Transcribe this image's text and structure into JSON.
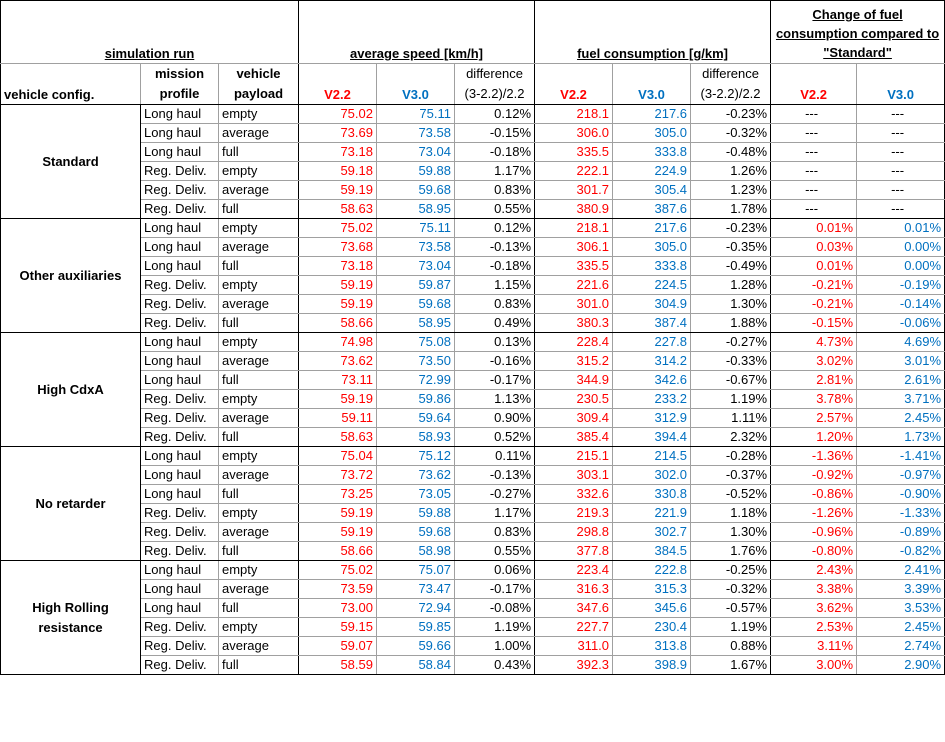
{
  "header": {
    "simulation_run": "simulation run",
    "avg_speed": "average speed [km/h]",
    "fuel_consumption": "fuel consumption [g/km]",
    "change_of_fuel": "Change of fuel consumption compared to \"Standard\"",
    "vehicle_config": "vehicle config.",
    "mission_profile": "mission profile",
    "vehicle_payload": "vehicle payload",
    "v22": "V2.2",
    "v30": "V3.0",
    "difference": "difference (3-2.2)/2.2"
  },
  "groups": [
    {
      "config": "Standard",
      "rows": [
        {
          "mission": "Long haul",
          "payload": "empty",
          "spd22": "75.02",
          "spd30": "75.11",
          "spdd": "0.12%",
          "fc22": "218.1",
          "fc30": "217.6",
          "fcd": "-0.23%",
          "ch22": "---",
          "ch30": "---"
        },
        {
          "mission": "Long haul",
          "payload": "average",
          "spd22": "73.69",
          "spd30": "73.58",
          "spdd": "-0.15%",
          "fc22": "306.0",
          "fc30": "305.0",
          "fcd": "-0.32%",
          "ch22": "---",
          "ch30": "---"
        },
        {
          "mission": "Long haul",
          "payload": "full",
          "spd22": "73.18",
          "spd30": "73.04",
          "spdd": "-0.18%",
          "fc22": "335.5",
          "fc30": "333.8",
          "fcd": "-0.48%",
          "ch22": "---",
          "ch30": "---"
        },
        {
          "mission": "Reg. Deliv.",
          "payload": "empty",
          "spd22": "59.18",
          "spd30": "59.88",
          "spdd": "1.17%",
          "fc22": "222.1",
          "fc30": "224.9",
          "fcd": "1.26%",
          "ch22": "---",
          "ch30": "---"
        },
        {
          "mission": "Reg. Deliv.",
          "payload": "average",
          "spd22": "59.19",
          "spd30": "59.68",
          "spdd": "0.83%",
          "fc22": "301.7",
          "fc30": "305.4",
          "fcd": "1.23%",
          "ch22": "---",
          "ch30": "---"
        },
        {
          "mission": "Reg. Deliv.",
          "payload": "full",
          "spd22": "58.63",
          "spd30": "58.95",
          "spdd": "0.55%",
          "fc22": "380.9",
          "fc30": "387.6",
          "fcd": "1.78%",
          "ch22": "---",
          "ch30": "---"
        }
      ]
    },
    {
      "config": "Other auxiliaries",
      "rows": [
        {
          "mission": "Long haul",
          "payload": "empty",
          "spd22": "75.02",
          "spd30": "75.11",
          "spdd": "0.12%",
          "fc22": "218.1",
          "fc30": "217.6",
          "fcd": "-0.23%",
          "ch22": "0.01%",
          "ch30": "0.01%"
        },
        {
          "mission": "Long haul",
          "payload": "average",
          "spd22": "73.68",
          "spd30": "73.58",
          "spdd": "-0.13%",
          "fc22": "306.1",
          "fc30": "305.0",
          "fcd": "-0.35%",
          "ch22": "0.03%",
          "ch30": "0.00%"
        },
        {
          "mission": "Long haul",
          "payload": "full",
          "spd22": "73.18",
          "spd30": "73.04",
          "spdd": "-0.18%",
          "fc22": "335.5",
          "fc30": "333.8",
          "fcd": "-0.49%",
          "ch22": "0.01%",
          "ch30": "0.00%"
        },
        {
          "mission": "Reg. Deliv.",
          "payload": "empty",
          "spd22": "59.19",
          "spd30": "59.87",
          "spdd": "1.15%",
          "fc22": "221.6",
          "fc30": "224.5",
          "fcd": "1.28%",
          "ch22": "-0.21%",
          "ch30": "-0.19%"
        },
        {
          "mission": "Reg. Deliv.",
          "payload": "average",
          "spd22": "59.19",
          "spd30": "59.68",
          "spdd": "0.83%",
          "fc22": "301.0",
          "fc30": "304.9",
          "fcd": "1.30%",
          "ch22": "-0.21%",
          "ch30": "-0.14%"
        },
        {
          "mission": "Reg. Deliv.",
          "payload": "full",
          "spd22": "58.66",
          "spd30": "58.95",
          "spdd": "0.49%",
          "fc22": "380.3",
          "fc30": "387.4",
          "fcd": "1.88%",
          "ch22": "-0.15%",
          "ch30": "-0.06%"
        }
      ]
    },
    {
      "config": "High CdxA",
      "rows": [
        {
          "mission": "Long haul",
          "payload": "empty",
          "spd22": "74.98",
          "spd30": "75.08",
          "spdd": "0.13%",
          "fc22": "228.4",
          "fc30": "227.8",
          "fcd": "-0.27%",
          "ch22": "4.73%",
          "ch30": "4.69%"
        },
        {
          "mission": "Long haul",
          "payload": "average",
          "spd22": "73.62",
          "spd30": "73.50",
          "spdd": "-0.16%",
          "fc22": "315.2",
          "fc30": "314.2",
          "fcd": "-0.33%",
          "ch22": "3.02%",
          "ch30": "3.01%"
        },
        {
          "mission": "Long haul",
          "payload": "full",
          "spd22": "73.11",
          "spd30": "72.99",
          "spdd": "-0.17%",
          "fc22": "344.9",
          "fc30": "342.6",
          "fcd": "-0.67%",
          "ch22": "2.81%",
          "ch30": "2.61%"
        },
        {
          "mission": "Reg. Deliv.",
          "payload": "empty",
          "spd22": "59.19",
          "spd30": "59.86",
          "spdd": "1.13%",
          "fc22": "230.5",
          "fc30": "233.2",
          "fcd": "1.19%",
          "ch22": "3.78%",
          "ch30": "3.71%"
        },
        {
          "mission": "Reg. Deliv.",
          "payload": "average",
          "spd22": "59.11",
          "spd30": "59.64",
          "spdd": "0.90%",
          "fc22": "309.4",
          "fc30": "312.9",
          "fcd": "1.11%",
          "ch22": "2.57%",
          "ch30": "2.45%"
        },
        {
          "mission": "Reg. Deliv.",
          "payload": "full",
          "spd22": "58.63",
          "spd30": "58.93",
          "spdd": "0.52%",
          "fc22": "385.4",
          "fc30": "394.4",
          "fcd": "2.32%",
          "ch22": "1.20%",
          "ch30": "1.73%"
        }
      ]
    },
    {
      "config": "No retarder",
      "rows": [
        {
          "mission": "Long haul",
          "payload": "empty",
          "spd22": "75.04",
          "spd30": "75.12",
          "spdd": "0.11%",
          "fc22": "215.1",
          "fc30": "214.5",
          "fcd": "-0.28%",
          "ch22": "-1.36%",
          "ch30": "-1.41%"
        },
        {
          "mission": "Long haul",
          "payload": "average",
          "spd22": "73.72",
          "spd30": "73.62",
          "spdd": "-0.13%",
          "fc22": "303.1",
          "fc30": "302.0",
          "fcd": "-0.37%",
          "ch22": "-0.92%",
          "ch30": "-0.97%"
        },
        {
          "mission": "Long haul",
          "payload": "full",
          "spd22": "73.25",
          "spd30": "73.05",
          "spdd": "-0.27%",
          "fc22": "332.6",
          "fc30": "330.8",
          "fcd": "-0.52%",
          "ch22": "-0.86%",
          "ch30": "-0.90%"
        },
        {
          "mission": "Reg. Deliv.",
          "payload": "empty",
          "spd22": "59.19",
          "spd30": "59.88",
          "spdd": "1.17%",
          "fc22": "219.3",
          "fc30": "221.9",
          "fcd": "1.18%",
          "ch22": "-1.26%",
          "ch30": "-1.33%"
        },
        {
          "mission": "Reg. Deliv.",
          "payload": "average",
          "spd22": "59.19",
          "spd30": "59.68",
          "spdd": "0.83%",
          "fc22": "298.8",
          "fc30": "302.7",
          "fcd": "1.30%",
          "ch22": "-0.96%",
          "ch30": "-0.89%"
        },
        {
          "mission": "Reg. Deliv.",
          "payload": "full",
          "spd22": "58.66",
          "spd30": "58.98",
          "spdd": "0.55%",
          "fc22": "377.8",
          "fc30": "384.5",
          "fcd": "1.76%",
          "ch22": "-0.80%",
          "ch30": "-0.82%"
        }
      ]
    },
    {
      "config": "High Rolling resistance",
      "rows": [
        {
          "mission": "Long haul",
          "payload": "empty",
          "spd22": "75.02",
          "spd30": "75.07",
          "spdd": "0.06%",
          "fc22": "223.4",
          "fc30": "222.8",
          "fcd": "-0.25%",
          "ch22": "2.43%",
          "ch30": "2.41%"
        },
        {
          "mission": "Long haul",
          "payload": "average",
          "spd22": "73.59",
          "spd30": "73.47",
          "spdd": "-0.17%",
          "fc22": "316.3",
          "fc30": "315.3",
          "fcd": "-0.32%",
          "ch22": "3.38%",
          "ch30": "3.39%"
        },
        {
          "mission": "Long haul",
          "payload": "full",
          "spd22": "73.00",
          "spd30": "72.94",
          "spdd": "-0.08%",
          "fc22": "347.6",
          "fc30": "345.6",
          "fcd": "-0.57%",
          "ch22": "3.62%",
          "ch30": "3.53%"
        },
        {
          "mission": "Reg. Deliv.",
          "payload": "empty",
          "spd22": "59.15",
          "spd30": "59.85",
          "spdd": "1.19%",
          "fc22": "227.7",
          "fc30": "230.4",
          "fcd": "1.19%",
          "ch22": "2.53%",
          "ch30": "2.45%"
        },
        {
          "mission": "Reg. Deliv.",
          "payload": "average",
          "spd22": "59.07",
          "spd30": "59.66",
          "spdd": "1.00%",
          "fc22": "311.0",
          "fc30": "313.8",
          "fcd": "0.88%",
          "ch22": "3.11%",
          "ch30": "2.74%"
        },
        {
          "mission": "Reg. Deliv.",
          "payload": "full",
          "spd22": "58.59",
          "spd30": "58.84",
          "spdd": "0.43%",
          "fc22": "392.3",
          "fc30": "398.9",
          "fcd": "1.67%",
          "ch22": "3.00%",
          "ch30": "2.90%"
        }
      ]
    }
  ]
}
